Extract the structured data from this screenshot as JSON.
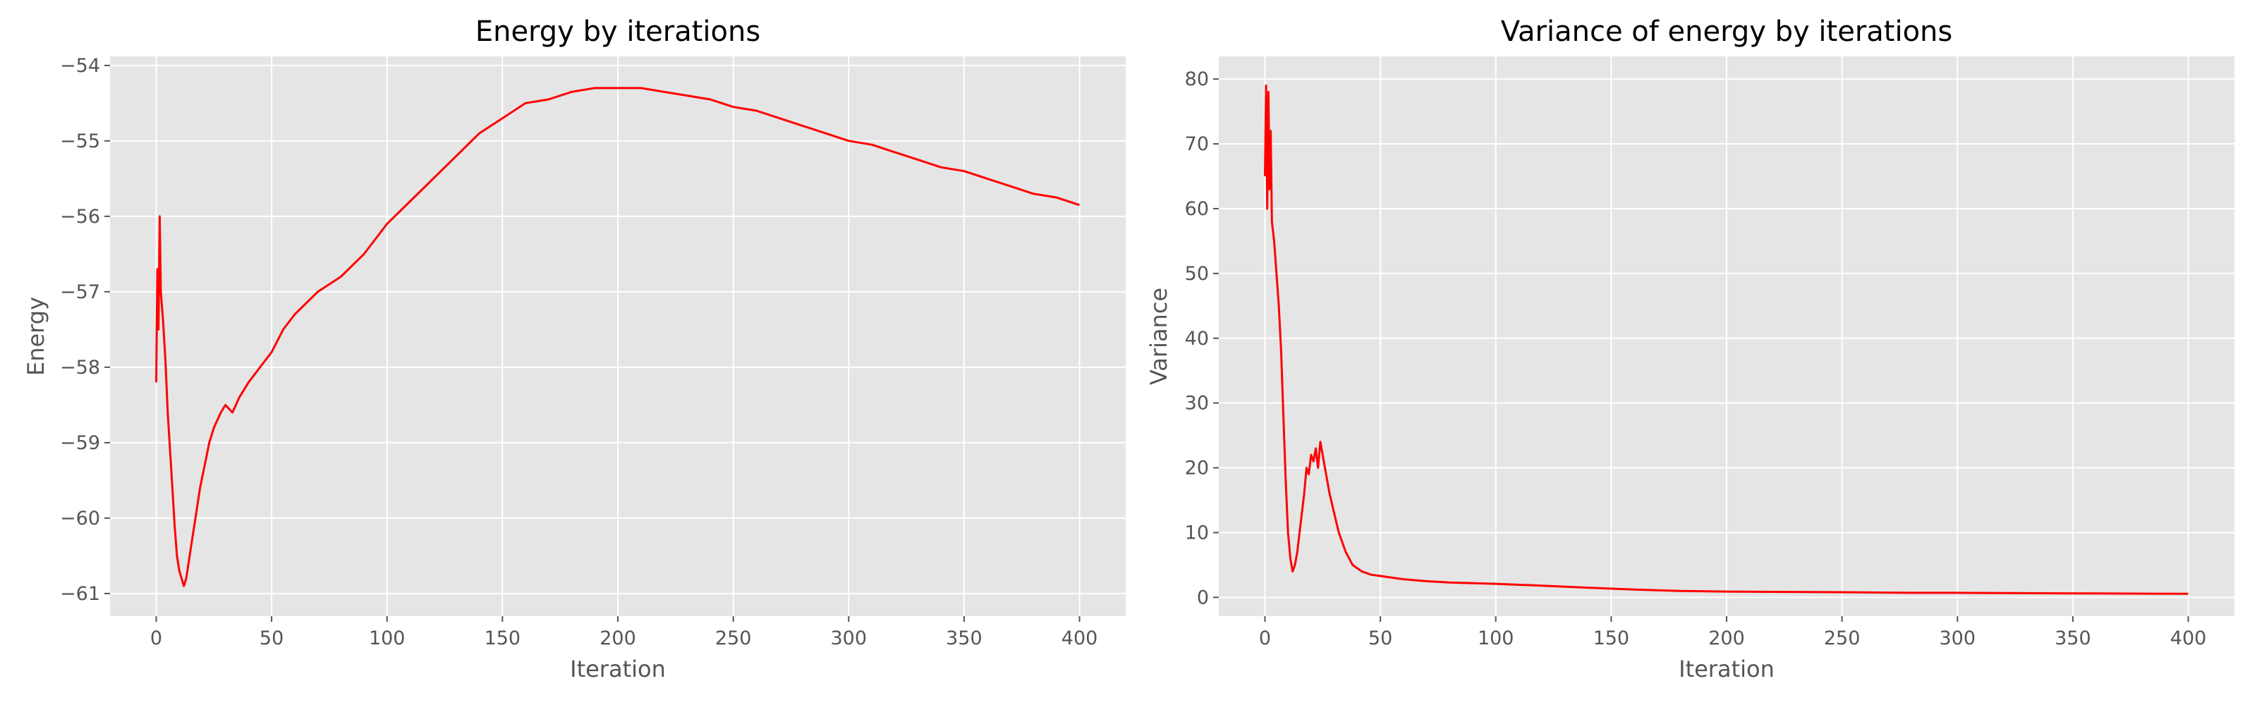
{
  "chart_data": [
    {
      "type": "line",
      "title": "Energy by iterations",
      "xlabel": "Iteration",
      "ylabel": "Energy",
      "xlim": [
        -20,
        420
      ],
      "ylim": [
        -61.3,
        -53.88
      ],
      "xticks": [
        0,
        50,
        100,
        150,
        200,
        250,
        300,
        350,
        400
      ],
      "yticks": [
        -61,
        -60,
        -59,
        -58,
        -57,
        -56,
        -55,
        -54
      ],
      "grid": true,
      "series": [
        {
          "color": "#ff0000",
          "points": [
            [
              0,
              -58.2
            ],
            [
              0.5,
              -56.7
            ],
            [
              1,
              -57.5
            ],
            [
              1.5,
              -56.0
            ],
            [
              2,
              -57.0
            ],
            [
              3,
              -57.4
            ],
            [
              4,
              -57.9
            ],
            [
              5,
              -58.6
            ],
            [
              6,
              -59.1
            ],
            [
              7,
              -59.6
            ],
            [
              8,
              -60.1
            ],
            [
              9,
              -60.5
            ],
            [
              10,
              -60.7
            ],
            [
              11,
              -60.8
            ],
            [
              12,
              -60.9
            ],
            [
              13,
              -60.8
            ],
            [
              14,
              -60.6
            ],
            [
              15,
              -60.4
            ],
            [
              17,
              -60.0
            ],
            [
              19,
              -59.6
            ],
            [
              21,
              -59.3
            ],
            [
              23,
              -59.0
            ],
            [
              25,
              -58.8
            ],
            [
              28,
              -58.6
            ],
            [
              30,
              -58.5
            ],
            [
              33,
              -58.6
            ],
            [
              36,
              -58.4
            ],
            [
              40,
              -58.2
            ],
            [
              45,
              -58.0
            ],
            [
              50,
              -57.8
            ],
            [
              55,
              -57.5
            ],
            [
              60,
              -57.3
            ],
            [
              70,
              -57.0
            ],
            [
              80,
              -56.8
            ],
            [
              90,
              -56.5
            ],
            [
              100,
              -56.1
            ],
            [
              110,
              -55.8
            ],
            [
              120,
              -55.5
            ],
            [
              130,
              -55.2
            ],
            [
              140,
              -54.9
            ],
            [
              150,
              -54.7
            ],
            [
              160,
              -54.5
            ],
            [
              170,
              -54.45
            ],
            [
              180,
              -54.35
            ],
            [
              190,
              -54.3
            ],
            [
              200,
              -54.3
            ],
            [
              210,
              -54.3
            ],
            [
              220,
              -54.35
            ],
            [
              230,
              -54.4
            ],
            [
              240,
              -54.45
            ],
            [
              250,
              -54.55
            ],
            [
              260,
              -54.6
            ],
            [
              270,
              -54.7
            ],
            [
              280,
              -54.8
            ],
            [
              290,
              -54.9
            ],
            [
              300,
              -55.0
            ],
            [
              310,
              -55.05
            ],
            [
              320,
              -55.15
            ],
            [
              330,
              -55.25
            ],
            [
              340,
              -55.35
            ],
            [
              350,
              -55.4
            ],
            [
              360,
              -55.5
            ],
            [
              370,
              -55.6
            ],
            [
              380,
              -55.7
            ],
            [
              390,
              -55.75
            ],
            [
              400,
              -55.85
            ]
          ]
        }
      ]
    },
    {
      "type": "line",
      "title": "Variance of energy by iterations",
      "xlabel": "Iteration",
      "ylabel": "Variance",
      "xlim": [
        -20,
        420
      ],
      "ylim": [
        -2.9,
        83.5
      ],
      "xticks": [
        0,
        50,
        100,
        150,
        200,
        250,
        300,
        350,
        400
      ],
      "yticks": [
        0,
        10,
        20,
        30,
        40,
        50,
        60,
        70,
        80
      ],
      "grid": true,
      "series": [
        {
          "color": "#ff0000",
          "points": [
            [
              0,
              65
            ],
            [
              0.5,
              79
            ],
            [
              1,
              60
            ],
            [
              1.5,
              78
            ],
            [
              2,
              63
            ],
            [
              2.5,
              72
            ],
            [
              3,
              58
            ],
            [
              4,
              55
            ],
            [
              5,
              50
            ],
            [
              6,
              45
            ],
            [
              7,
              38
            ],
            [
              8,
              28
            ],
            [
              9,
              18
            ],
            [
              10,
              10
            ],
            [
              11,
              6
            ],
            [
              12,
              4
            ],
            [
              13,
              5
            ],
            [
              14,
              7
            ],
            [
              15,
              10
            ],
            [
              16,
              13
            ],
            [
              17,
              16
            ],
            [
              18,
              20
            ],
            [
              19,
              19
            ],
            [
              20,
              22
            ],
            [
              21,
              21
            ],
            [
              22,
              23
            ],
            [
              23,
              20
            ],
            [
              24,
              24
            ],
            [
              25,
              22
            ],
            [
              26,
              20
            ],
            [
              27,
              18
            ],
            [
              28,
              16
            ],
            [
              30,
              13
            ],
            [
              32,
              10
            ],
            [
              35,
              7
            ],
            [
              38,
              5
            ],
            [
              42,
              4
            ],
            [
              46,
              3.5
            ],
            [
              50,
              3.3
            ],
            [
              60,
              2.8
            ],
            [
              70,
              2.5
            ],
            [
              80,
              2.3
            ],
            [
              100,
              2.1
            ],
            [
              120,
              1.8
            ],
            [
              140,
              1.5
            ],
            [
              160,
              1.2
            ],
            [
              180,
              1.0
            ],
            [
              200,
              0.9
            ],
            [
              220,
              0.85
            ],
            [
              250,
              0.8
            ],
            [
              280,
              0.7
            ],
            [
              300,
              0.7
            ],
            [
              330,
              0.65
            ],
            [
              360,
              0.6
            ],
            [
              400,
              0.55
            ]
          ]
        }
      ]
    }
  ]
}
